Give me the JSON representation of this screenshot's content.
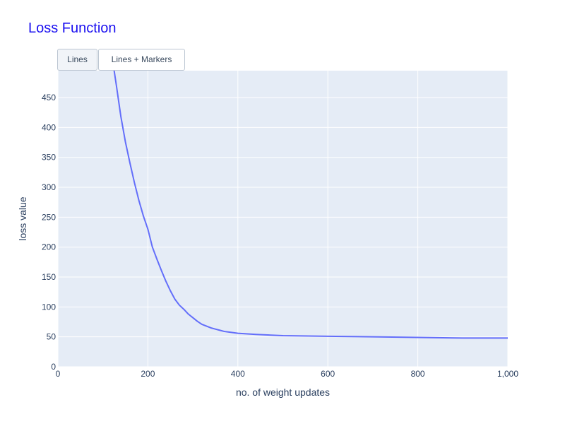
{
  "page": {
    "title": "Loss Function",
    "title_color": "#1a0ff0"
  },
  "buttons": [
    {
      "label": "Lines",
      "active": true
    },
    {
      "label": "Lines + Markers",
      "active": false
    }
  ],
  "chart_data": {
    "type": "line",
    "title": "Loss Function",
    "xlabel": "no. of weight updates",
    "ylabel": "loss value",
    "xlim": [
      0,
      1000
    ],
    "ylim": [
      0,
      495
    ],
    "xticks": [
      0,
      200,
      400,
      600,
      800,
      1000
    ],
    "xtick_labels": [
      "0",
      "200",
      "400",
      "600",
      "800",
      "1,000"
    ],
    "yticks": [
      0,
      50,
      100,
      150,
      200,
      250,
      300,
      350,
      400,
      450
    ],
    "ytick_labels": [
      "0",
      "50",
      "100",
      "150",
      "200",
      "250",
      "300",
      "350",
      "400",
      "450"
    ],
    "grid": true,
    "plot_bgcolor": "#e5ecf6",
    "line_color": "#636efa",
    "series": [
      {
        "x": [
          120,
          130,
          140,
          150,
          160,
          170,
          180,
          190,
          200,
          210,
          220,
          230,
          240,
          250,
          260,
          270,
          280,
          290,
          300,
          310,
          320,
          330,
          340,
          350,
          360,
          370,
          380,
          390,
          400,
          440,
          500,
          600,
          700,
          800,
          900,
          1000
        ],
        "y": [
          520,
          470,
          418,
          376,
          341,
          308,
          278,
          252,
          230,
          200,
          180,
          161,
          143,
          127,
          113,
          103,
          96,
          88,
          82,
          76,
          71,
          68,
          65,
          63,
          61,
          59,
          58,
          57,
          56,
          54,
          52,
          51,
          50,
          49,
          48,
          48
        ]
      }
    ]
  }
}
